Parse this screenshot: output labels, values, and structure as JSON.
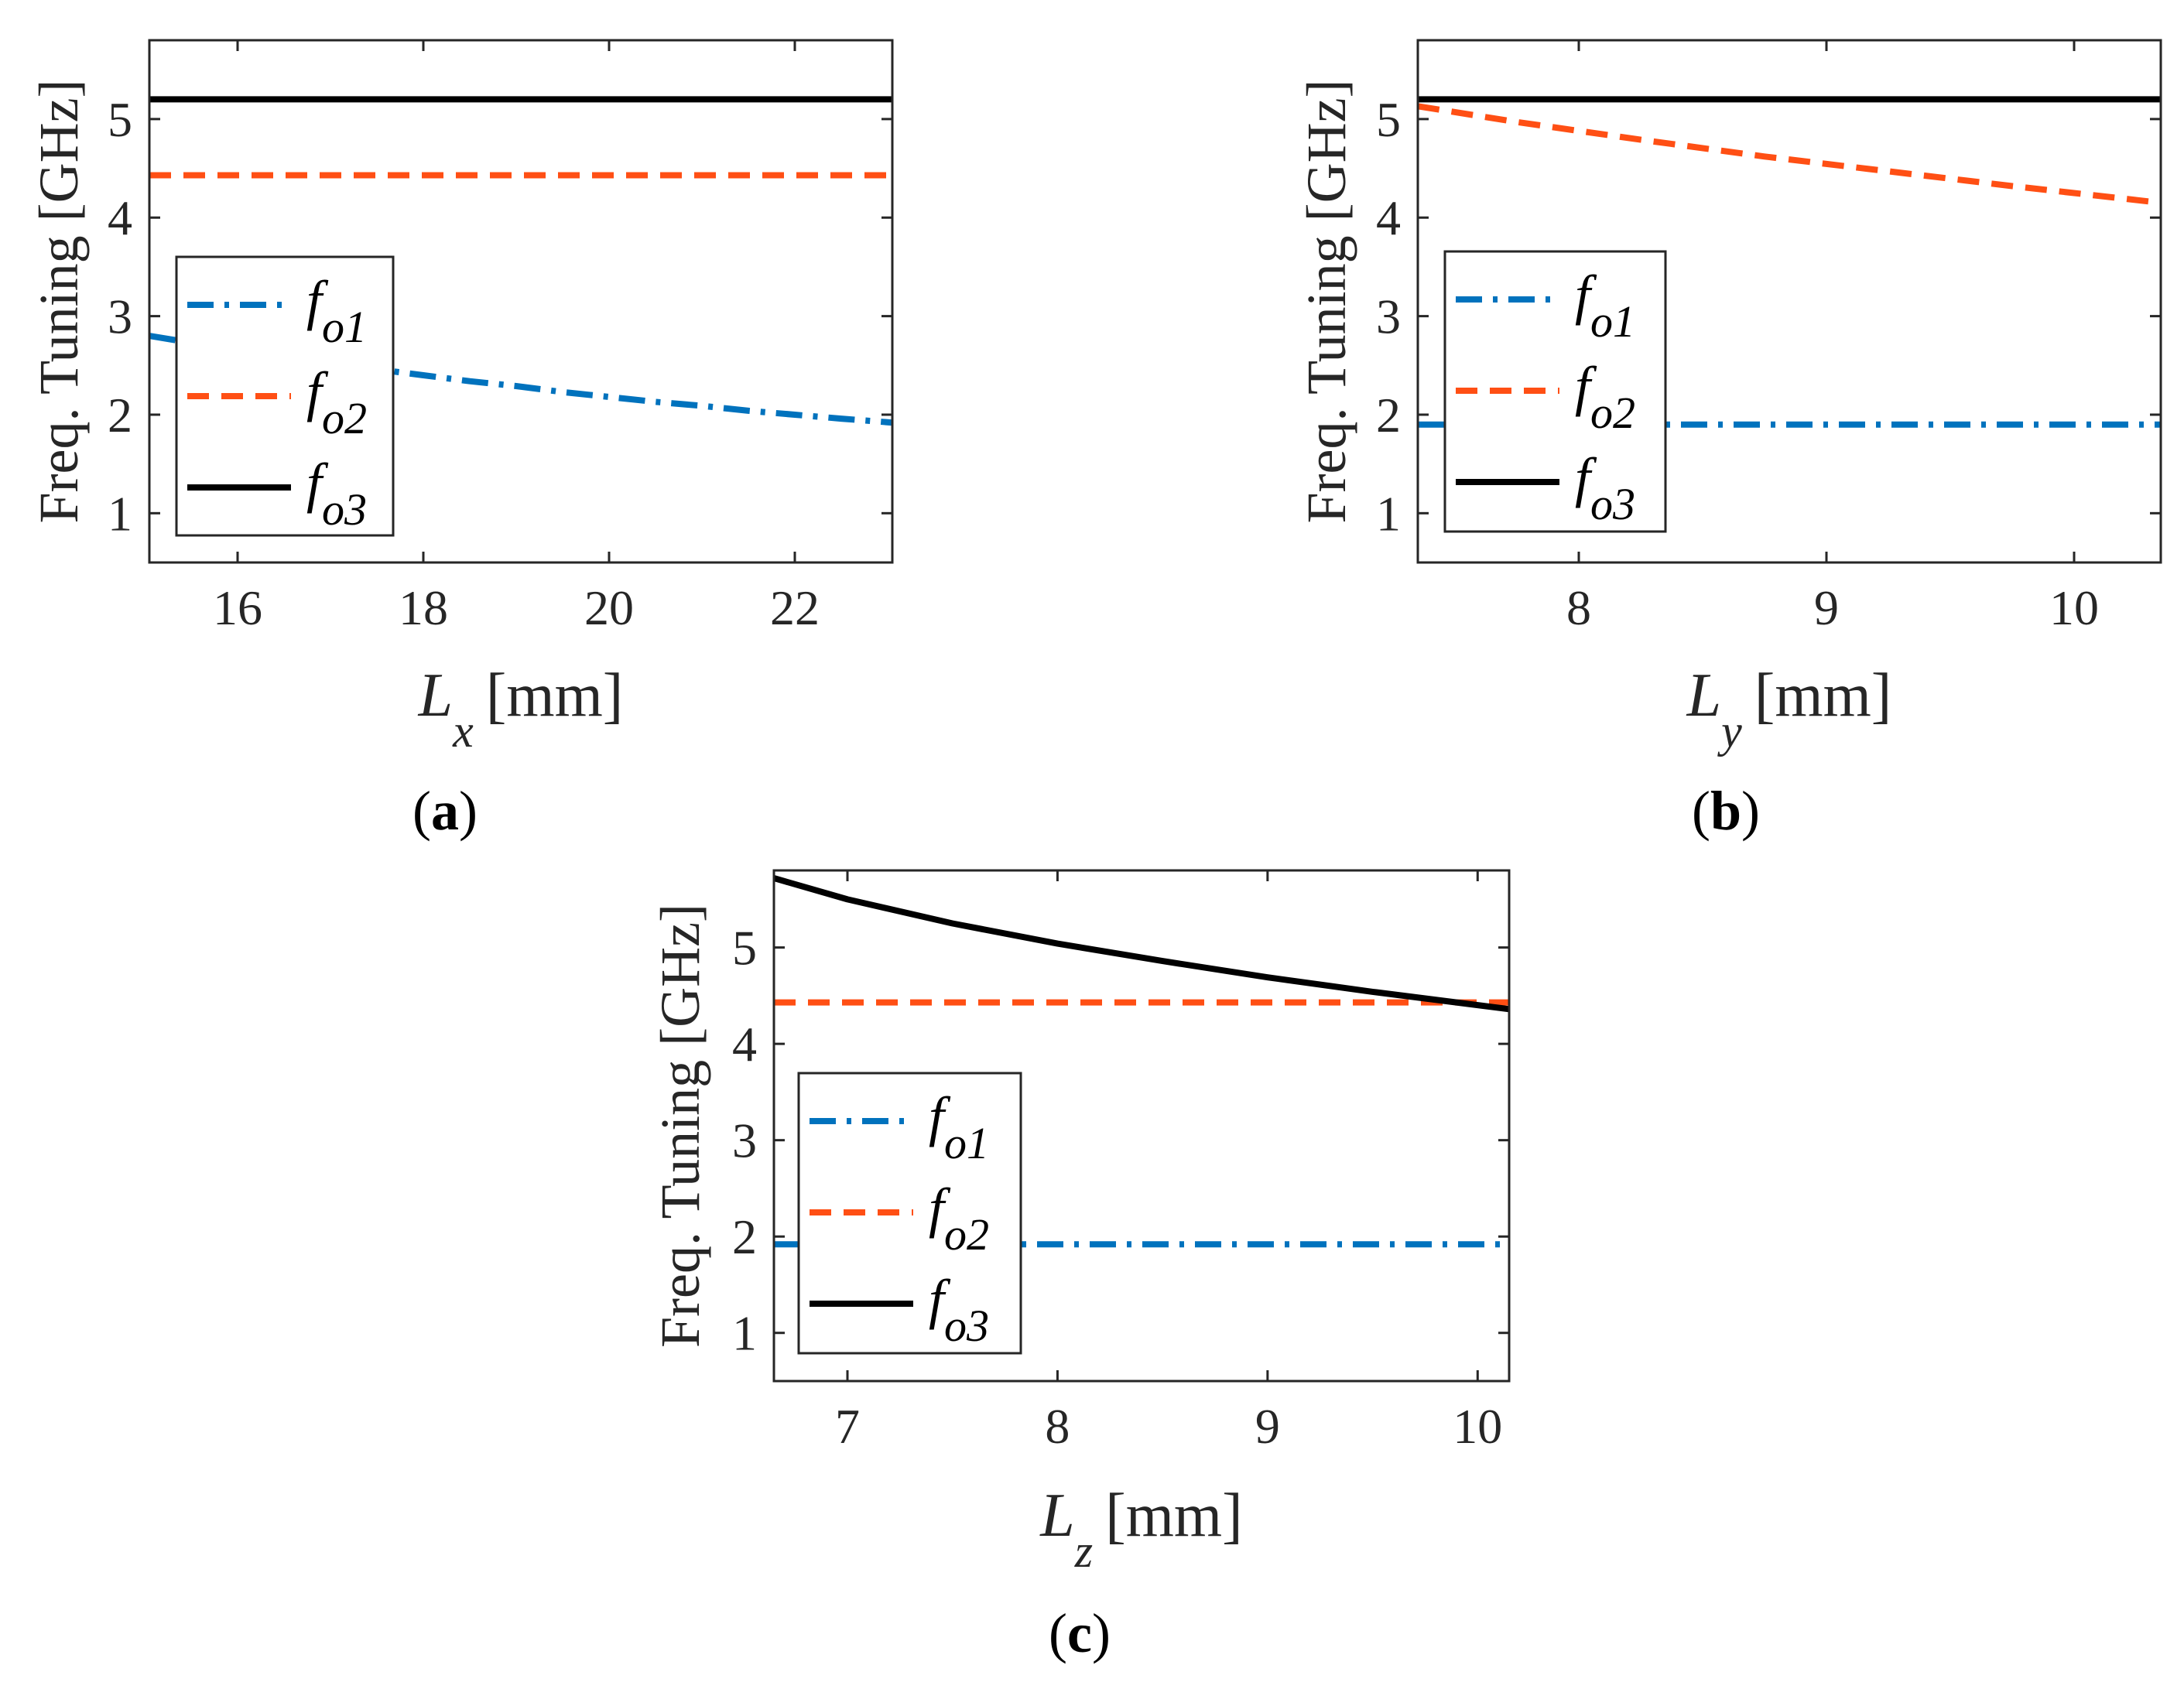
{
  "figure": {
    "series_styles": [
      {
        "key": "fo1",
        "color": "#0072BD",
        "dash": "dash-dot"
      },
      {
        "key": "fo2",
        "color": "#FF4F14",
        "dash": "dashed"
      },
      {
        "key": "fo3",
        "color": "#000000",
        "dash": "solid"
      }
    ]
  },
  "chart_data": [
    {
      "type": "line",
      "caption_open": "(",
      "caption_letter": "a",
      "caption_close": ")",
      "ylabel": "Freq. Tuning [GHz]",
      "xlabel_var": "L",
      "xlabel_sub": "x",
      "xlabel_unit": "[mm]",
      "xlim": [
        15.05,
        23.05
      ],
      "ylim": [
        0.5,
        5.8
      ],
      "xticks": [
        16,
        18,
        20,
        22
      ],
      "yticks": [
        1,
        2,
        3,
        4,
        5
      ],
      "legend": {
        "position": "lower-left",
        "entries": [
          {
            "base": "f",
            "sub": "o1"
          },
          {
            "base": "f",
            "sub": "o2"
          },
          {
            "base": "f",
            "sub": "o3"
          }
        ]
      },
      "series": [
        {
          "name": "fo1",
          "x": [
            15.05,
            15.5,
            16,
            16.5,
            17,
            17.5,
            18,
            18.5,
            19,
            19.5,
            20,
            20.5,
            21,
            21.5,
            22,
            22.5,
            23.05
          ],
          "y": [
            2.8,
            2.73,
            2.66,
            2.59,
            2.52,
            2.46,
            2.4,
            2.34,
            2.29,
            2.23,
            2.18,
            2.13,
            2.09,
            2.04,
            2.0,
            1.96,
            1.92
          ]
        },
        {
          "name": "fo2",
          "x": [
            15.05,
            23.05
          ],
          "y": [
            4.43,
            4.43
          ]
        },
        {
          "name": "fo3",
          "x": [
            15.05,
            23.05
          ],
          "y": [
            5.2,
            5.2
          ]
        }
      ]
    },
    {
      "type": "line",
      "caption_open": "(",
      "caption_letter": "b",
      "caption_close": ")",
      "ylabel": "Freq. Tuning [GHz]",
      "xlabel_var": "L",
      "xlabel_sub": "y",
      "xlabel_unit": "[mm]",
      "xlim": [
        7.35,
        10.35
      ],
      "ylim": [
        0.5,
        5.8
      ],
      "xticks": [
        8,
        9,
        10
      ],
      "yticks": [
        1,
        2,
        3,
        4,
        5
      ],
      "legend": {
        "position": "lower-left",
        "entries": [
          {
            "base": "f",
            "sub": "o1"
          },
          {
            "base": "f",
            "sub": "o2"
          },
          {
            "base": "f",
            "sub": "o3"
          }
        ]
      },
      "series": [
        {
          "name": "fo1",
          "x": [
            7.35,
            10.35
          ],
          "y": [
            1.9,
            1.9
          ]
        },
        {
          "name": "fo2",
          "x": [
            7.35,
            7.75,
            8.25,
            8.75,
            9.25,
            9.75,
            10.35
          ],
          "y": [
            5.13,
            4.97,
            4.79,
            4.62,
            4.47,
            4.32,
            4.15
          ]
        },
        {
          "name": "fo3",
          "x": [
            7.35,
            10.35
          ],
          "y": [
            5.2,
            5.2
          ]
        }
      ]
    },
    {
      "type": "line",
      "caption_open": "(",
      "caption_letter": "c",
      "caption_close": ")",
      "ylabel": "Freq. Tuning [GHz]",
      "xlabel_var": "L",
      "xlabel_sub": "z",
      "xlabel_unit": "[mm]",
      "xlim": [
        6.65,
        10.15
      ],
      "ylim": [
        0.5,
        5.8
      ],
      "xticks": [
        7,
        8,
        9,
        10
      ],
      "yticks": [
        1,
        2,
        3,
        4,
        5
      ],
      "legend": {
        "position": "lower-left",
        "entries": [
          {
            "base": "f",
            "sub": "o1"
          },
          {
            "base": "f",
            "sub": "o2"
          },
          {
            "base": "f",
            "sub": "o3"
          }
        ]
      },
      "series": [
        {
          "name": "fo1",
          "x": [
            6.65,
            10.15
          ],
          "y": [
            1.92,
            1.92
          ]
        },
        {
          "name": "fo2",
          "x": [
            6.65,
            10.15
          ],
          "y": [
            4.43,
            4.43
          ]
        },
        {
          "name": "fo3",
          "x": [
            6.65,
            7.0,
            7.5,
            8.0,
            8.5,
            9.0,
            9.5,
            10.15
          ],
          "y": [
            5.72,
            5.5,
            5.25,
            5.04,
            4.86,
            4.69,
            4.54,
            4.36
          ]
        }
      ]
    }
  ]
}
